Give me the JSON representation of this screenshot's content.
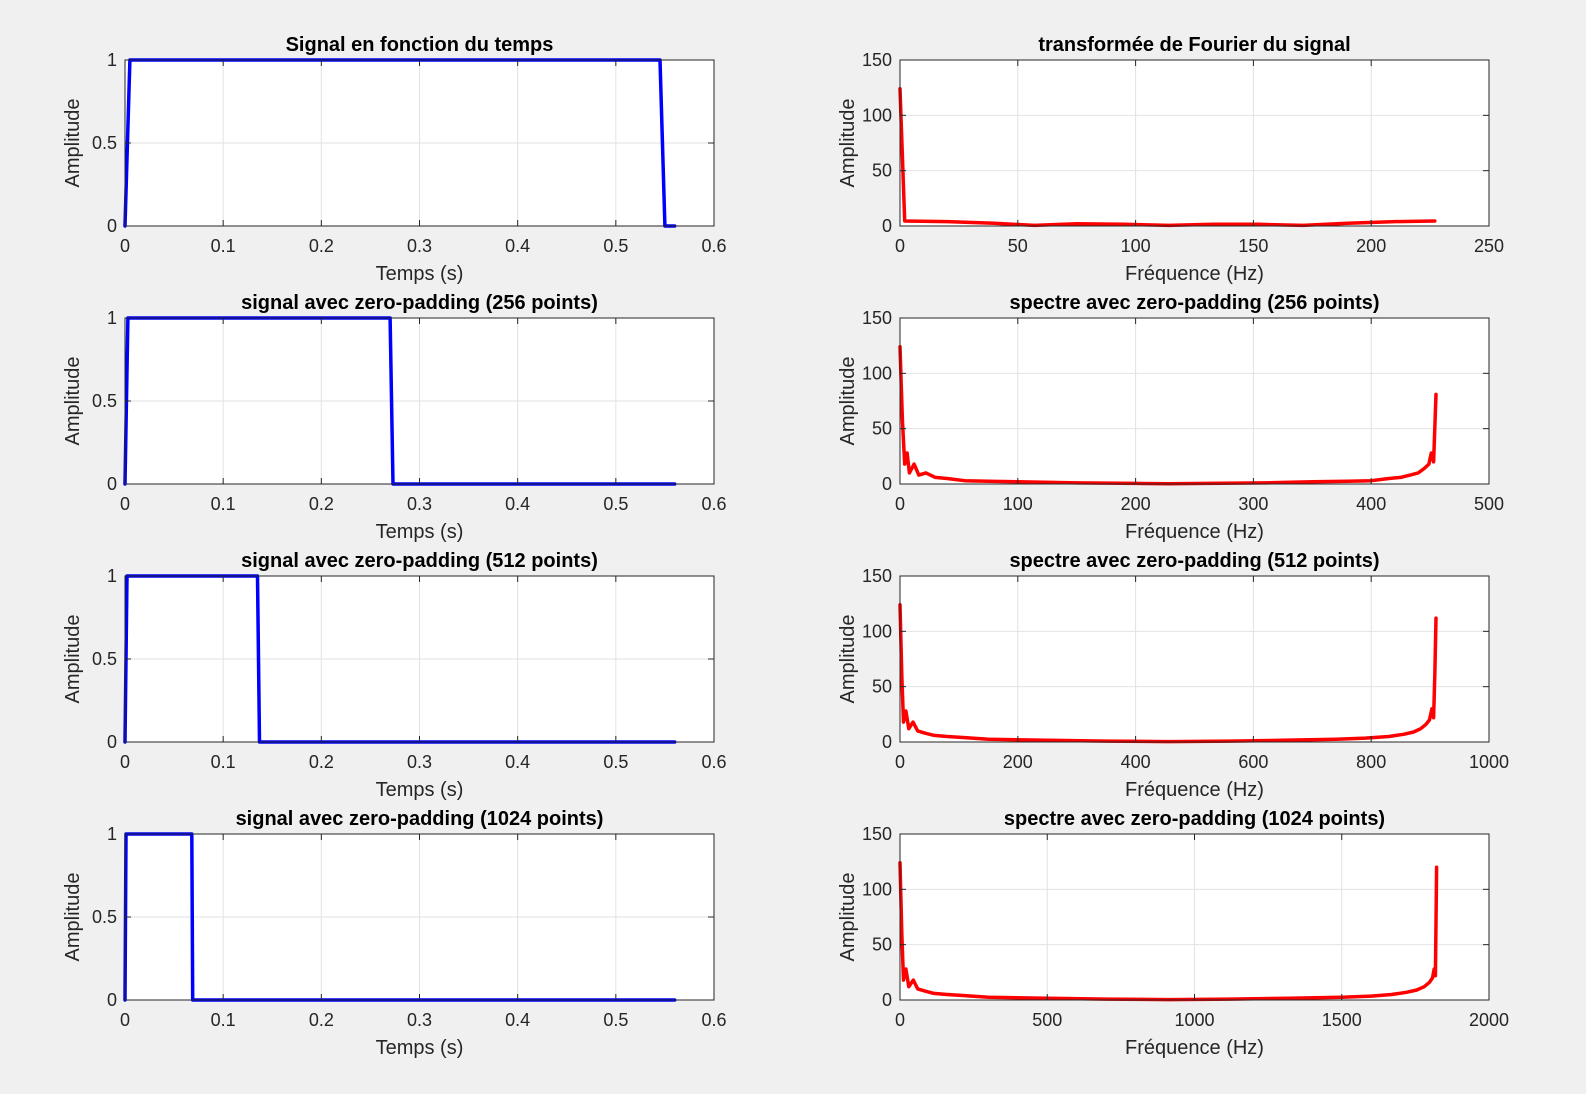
{
  "chart_data": [
    {
      "type": "line",
      "title": "Signal en fonction du temps",
      "xlabel": "Temps (s)",
      "ylabel": "Amplitude",
      "xlim": [
        0,
        0.6
      ],
      "ylim": [
        0,
        1
      ],
      "xticks": [
        "0",
        "0.1",
        "0.2",
        "0.3",
        "0.4",
        "0.5",
        "0.6"
      ],
      "yticks": [
        "0",
        "0.5",
        "1"
      ],
      "grid": true,
      "series": [
        {
          "color": "#0000ff",
          "x": [
            0,
            0.005,
            0.545,
            0.55,
            0.56
          ],
          "y": [
            0,
            1,
            1,
            0,
            0
          ]
        }
      ]
    },
    {
      "type": "line",
      "title": "transformée de Fourier du signal",
      "xlabel": "Fréquence (Hz)",
      "ylabel": "Amplitude",
      "xlim": [
        0,
        250
      ],
      "ylim": [
        0,
        150
      ],
      "xticks": [
        "0",
        "50",
        "100",
        "150",
        "200",
        "250"
      ],
      "yticks": [
        "0",
        "50",
        "100",
        "150"
      ],
      "grid": true,
      "series": [
        {
          "color": "#ff0000",
          "x": [
            0,
            2,
            20,
            40,
            57,
            75,
            95,
            114,
            133,
            152,
            171,
            190,
            210,
            227
          ],
          "y": [
            124,
            4.5,
            4,
            2.5,
            0.5,
            2,
            1.5,
            0.5,
            1.5,
            1.5,
            0.5,
            2.5,
            4,
            4.5
          ]
        }
      ]
    },
    {
      "type": "line",
      "title": "signal avec zero-padding (256 points)",
      "xlabel": "Temps (s)",
      "ylabel": "Amplitude",
      "xlim": [
        0,
        0.6
      ],
      "ylim": [
        0,
        1
      ],
      "xticks": [
        "0",
        "0.1",
        "0.2",
        "0.3",
        "0.4",
        "0.5",
        "0.6"
      ],
      "yticks": [
        "0",
        "0.5",
        "1"
      ],
      "grid": true,
      "series": [
        {
          "color": "#0000ff",
          "x": [
            0,
            0.003,
            0.27,
            0.273,
            0.56
          ],
          "y": [
            0,
            1,
            1,
            0,
            0
          ]
        }
      ]
    },
    {
      "type": "line",
      "title": "spectre avec zero-padding (256 points)",
      "xlabel": "Fréquence (Hz)",
      "ylabel": "Amplitude",
      "xlim": [
        0,
        500
      ],
      "ylim": [
        0,
        150
      ],
      "xticks": [
        "0",
        "100",
        "200",
        "300",
        "400",
        "500"
      ],
      "yticks": [
        "0",
        "50",
        "100",
        "150"
      ],
      "grid": true,
      "series": [
        {
          "color": "#ff0000",
          "x": [
            0,
            2,
            4,
            6,
            8,
            12,
            16,
            22,
            30,
            40,
            55,
            75,
            100,
            150,
            200,
            228,
            260,
            310,
            350,
            380,
            400,
            415,
            425,
            433,
            440,
            445,
            449,
            451,
            453,
            455
          ],
          "y": [
            124,
            58,
            18,
            28,
            10,
            18,
            8,
            10,
            6,
            5,
            3,
            2.5,
            2,
            1,
            0.5,
            0.3,
            0.5,
            1,
            2,
            2.5,
            3,
            5,
            6,
            8,
            10,
            14,
            18,
            28,
            20,
            81
          ]
        }
      ]
    },
    {
      "type": "line",
      "title": "signal avec zero-padding (512 points)",
      "xlabel": "Temps (s)",
      "ylabel": "Amplitude",
      "xlim": [
        0,
        0.6
      ],
      "ylim": [
        0,
        1
      ],
      "xticks": [
        "0",
        "0.1",
        "0.2",
        "0.3",
        "0.4",
        "0.5",
        "0.6"
      ],
      "yticks": [
        "0",
        "0.5",
        "1"
      ],
      "grid": true,
      "series": [
        {
          "color": "#0000ff",
          "x": [
            0,
            0.002,
            0.135,
            0.137,
            0.56
          ],
          "y": [
            0,
            1,
            1,
            0,
            0
          ]
        }
      ]
    },
    {
      "type": "line",
      "title": "spectre avec zero-padding (512 points)",
      "xlabel": "Fréquence (Hz)",
      "ylabel": "Amplitude",
      "xlim": [
        0,
        1000
      ],
      "ylim": [
        0,
        150
      ],
      "xticks": [
        "0",
        "200",
        "400",
        "600",
        "800",
        "1000"
      ],
      "yticks": [
        "0",
        "50",
        "100",
        "150"
      ],
      "grid": true,
      "series": [
        {
          "color": "#ff0000",
          "x": [
            0,
            3,
            6,
            10,
            15,
            22,
            30,
            42,
            58,
            80,
            110,
            150,
            250,
            350,
            456,
            560,
            650,
            740,
            790,
            830,
            855,
            872,
            884,
            893,
            899,
            903,
            906,
            908,
            910
          ],
          "y": [
            124,
            60,
            18,
            28,
            12,
            18,
            10,
            8,
            6,
            5,
            4,
            2.5,
            1.5,
            0.8,
            0.4,
            0.8,
            1.5,
            2.5,
            3.5,
            5,
            7,
            9,
            12,
            16,
            20,
            30,
            22,
            60,
            112
          ]
        }
      ]
    },
    {
      "type": "line",
      "title": "signal avec zero-padding (1024 points)",
      "xlabel": "Temps (s)",
      "ylabel": "Amplitude",
      "xlim": [
        0,
        0.6
      ],
      "ylim": [
        0,
        1
      ],
      "xticks": [
        "0",
        "0.1",
        "0.2",
        "0.3",
        "0.4",
        "0.5",
        "0.6"
      ],
      "yticks": [
        "0",
        "0.5",
        "1"
      ],
      "grid": true,
      "series": [
        {
          "color": "#0000ff",
          "x": [
            0,
            0.001,
            0.068,
            0.069,
            0.56
          ],
          "y": [
            0,
            1,
            1,
            0,
            0
          ]
        }
      ]
    },
    {
      "type": "line",
      "title": "spectre avec zero-padding (1024 points)",
      "xlabel": "Fréquence (Hz)",
      "ylabel": "Amplitude",
      "xlim": [
        0,
        2000
      ],
      "ylim": [
        0,
        150
      ],
      "xticks": [
        "0",
        "500",
        "1000",
        "1500",
        "2000"
      ],
      "yticks": [
        "0",
        "50",
        "100",
        "150"
      ],
      "grid": true,
      "series": [
        {
          "color": "#ff0000",
          "x": [
            0,
            6,
            12,
            20,
            30,
            45,
            60,
            85,
            115,
            160,
            220,
            300,
            500,
            700,
            912,
            1120,
            1320,
            1500,
            1600,
            1670,
            1720,
            1755,
            1780,
            1798,
            1808,
            1814,
            1818,
            1820,
            1822
          ],
          "y": [
            124,
            60,
            18,
            28,
            12,
            18,
            10,
            8,
            6,
            5,
            4,
            2.5,
            1.5,
            0.8,
            0.4,
            0.8,
            1.5,
            2.5,
            3.5,
            5,
            7,
            9,
            12,
            16,
            20,
            28,
            22,
            70,
            120
          ]
        }
      ]
    }
  ]
}
